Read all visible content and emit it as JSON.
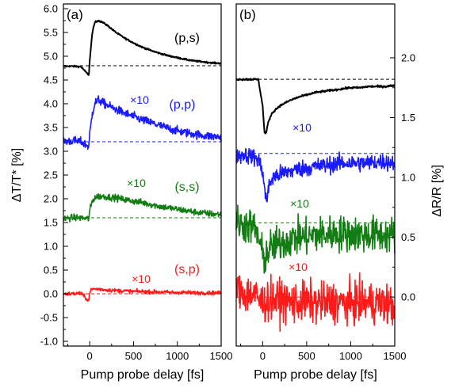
{
  "chart_data": [
    {
      "panel_label": "(a)",
      "type": "line",
      "xlabel": "Pump probe delay [fs]",
      "ylabel": "ΔT/T* [%]",
      "xlim": [
        -300,
        1500
      ],
      "ylim": [
        -1.1,
        6.1
      ],
      "x_ticks": [
        0,
        500,
        1000,
        1500
      ],
      "y_ticks": [
        -1.0,
        -0.5,
        0.0,
        0.5,
        1.0,
        1.5,
        2.0,
        2.5,
        3.0,
        3.5,
        4.0,
        4.5,
        5.0,
        5.5,
        6.0
      ],
      "y_tick_labels": [
        "-1.0",
        "-0.5",
        "0.0",
        "0.5",
        "1.0",
        "1.5",
        "2.0",
        "2.5",
        "3.0",
        "3.5",
        "4.0",
        "4.5",
        "5.0",
        "5.5",
        "6.0"
      ],
      "grid": false,
      "series": [
        {
          "name": "(p,s)",
          "multiplier": "",
          "color": "#000000",
          "baseline": 4.8,
          "x": [
            -300,
            -200,
            -100,
            -10,
            0,
            30,
            60,
            100,
            150,
            200,
            300,
            400,
            500,
            600,
            700,
            800,
            900,
            1000,
            1100,
            1200,
            1300,
            1400,
            1500
          ],
          "y": [
            4.79,
            4.79,
            4.78,
            4.6,
            4.9,
            5.5,
            5.72,
            5.75,
            5.71,
            5.65,
            5.5,
            5.38,
            5.28,
            5.19,
            5.12,
            5.06,
            5.01,
            4.97,
            4.93,
            4.9,
            4.88,
            4.86,
            4.85
          ],
          "noise": 0.008
        },
        {
          "name": "(p,p)",
          "multiplier": "×10",
          "color": "#1a1aff",
          "baseline": 3.2,
          "x": [
            -300,
            -200,
            -100,
            -10,
            0,
            30,
            60,
            100,
            150,
            200,
            300,
            400,
            500,
            600,
            700,
            800,
            900,
            1000,
            1100,
            1200,
            1300,
            1400,
            1500
          ],
          "y": [
            3.2,
            3.22,
            3.2,
            3.1,
            3.35,
            3.8,
            4.02,
            4.08,
            4.02,
            3.97,
            3.88,
            3.8,
            3.73,
            3.66,
            3.6,
            3.54,
            3.48,
            3.43,
            3.39,
            3.36,
            3.33,
            3.31,
            3.3
          ],
          "noise": 0.045
        },
        {
          "name": "(s,s)",
          "multiplier": "×10",
          "color": "#127d12",
          "baseline": 1.6,
          "x": [
            -300,
            -200,
            -100,
            -10,
            0,
            30,
            60,
            100,
            150,
            200,
            300,
            400,
            500,
            600,
            700,
            800,
            900,
            1000,
            1100,
            1200,
            1300,
            1400,
            1500
          ],
          "y": [
            1.58,
            1.6,
            1.6,
            1.58,
            1.75,
            1.95,
            2.03,
            2.05,
            2.05,
            2.04,
            2.02,
            1.98,
            1.95,
            1.92,
            1.88,
            1.84,
            1.81,
            1.78,
            1.75,
            1.72,
            1.7,
            1.68,
            1.67
          ],
          "noise": 0.035
        },
        {
          "name": "(s,p)",
          "multiplier": "×10",
          "color": "#ff1a1a",
          "baseline": 0.0,
          "x": [
            -300,
            -200,
            -100,
            -10,
            0,
            30,
            60,
            100,
            150,
            200,
            300,
            400,
            500,
            600,
            700,
            800,
            900,
            1000,
            1100,
            1200,
            1300,
            1400,
            1500
          ],
          "y": [
            0.0,
            0.0,
            0.01,
            -0.15,
            0.05,
            0.1,
            0.1,
            0.1,
            0.09,
            0.08,
            0.07,
            0.06,
            0.05,
            0.05,
            0.04,
            0.04,
            0.03,
            0.03,
            0.03,
            0.02,
            0.02,
            0.02,
            0.02
          ],
          "noise": 0.02
        }
      ]
    },
    {
      "panel_label": "(b)",
      "type": "line",
      "xlabel": "Pump probe delay [fs]",
      "ylabel": "ΔR/R [%]",
      "xlim": [
        -300,
        1500
      ],
      "ylim": [
        -0.41,
        2.45
      ],
      "x_ticks": [
        0,
        500,
        1000,
        1500
      ],
      "y_ticks": [
        0.0,
        0.5,
        1.0,
        1.5,
        2.0
      ],
      "y_tick_labels": [
        "0.0",
        "0.5",
        "1.0",
        "1.5",
        "2.0"
      ],
      "grid": false,
      "series": [
        {
          "name": "(p,s)",
          "multiplier": "",
          "color": "#000000",
          "baseline": 1.82,
          "x": [
            -300,
            -200,
            -100,
            -50,
            0,
            20,
            40,
            60,
            100,
            150,
            200,
            300,
            400,
            500,
            600,
            700,
            800,
            900,
            1000,
            1100,
            1200,
            1300,
            1400,
            1500
          ],
          "y": [
            1.82,
            1.82,
            1.82,
            1.82,
            1.6,
            1.38,
            1.37,
            1.45,
            1.53,
            1.57,
            1.6,
            1.64,
            1.67,
            1.69,
            1.71,
            1.72,
            1.73,
            1.74,
            1.75,
            1.75,
            1.76,
            1.76,
            1.76,
            1.77
          ],
          "noise": 0.004
        },
        {
          "name": "(p,p)",
          "multiplier": "×10",
          "color": "#1a1aff",
          "baseline": 1.2,
          "x": [
            -300,
            -200,
            -100,
            -50,
            0,
            30,
            50,
            80,
            120,
            200,
            300,
            400,
            500,
            600,
            700,
            800,
            900,
            1000,
            1100,
            1200,
            1300,
            1400,
            1500
          ],
          "y": [
            1.18,
            1.19,
            1.17,
            1.15,
            1.05,
            0.85,
            0.82,
            0.95,
            1.0,
            1.03,
            1.05,
            1.07,
            1.08,
            1.09,
            1.1,
            1.11,
            1.12,
            1.12,
            1.12,
            1.12,
            1.13,
            1.13,
            1.12
          ],
          "noise": 0.035
        },
        {
          "name": "(s,s)",
          "multiplier": "×10",
          "color": "#127d12",
          "baseline": 0.62,
          "x": [
            -300,
            -200,
            -100,
            -50,
            0,
            30,
            60,
            100,
            200,
            300,
            400,
            500,
            600,
            700,
            800,
            900,
            1000,
            1100,
            1200,
            1300,
            1400,
            1500
          ],
          "y": [
            0.62,
            0.6,
            0.58,
            0.5,
            0.35,
            0.32,
            0.38,
            0.42,
            0.45,
            0.48,
            0.5,
            0.5,
            0.52,
            0.52,
            0.53,
            0.53,
            0.53,
            0.52,
            0.52,
            0.52,
            0.52,
            0.52
          ],
          "noise": 0.075
        },
        {
          "name": "(s,p)",
          "multiplier": "×10",
          "color": "#ff1a1a",
          "baseline": 0.0,
          "x": [
            -300,
            -200,
            -100,
            0,
            100,
            200,
            300,
            400,
            500,
            600,
            700,
            800,
            900,
            1000,
            1100,
            1200,
            1300,
            1400,
            1500
          ],
          "y": [
            0.05,
            0.03,
            0.02,
            -0.05,
            -0.02,
            -0.03,
            -0.04,
            -0.05,
            -0.04,
            -0.05,
            -0.05,
            -0.04,
            -0.05,
            -0.05,
            -0.05,
            -0.05,
            -0.05,
            -0.06,
            -0.08
          ],
          "noise": 0.085
        }
      ]
    }
  ]
}
